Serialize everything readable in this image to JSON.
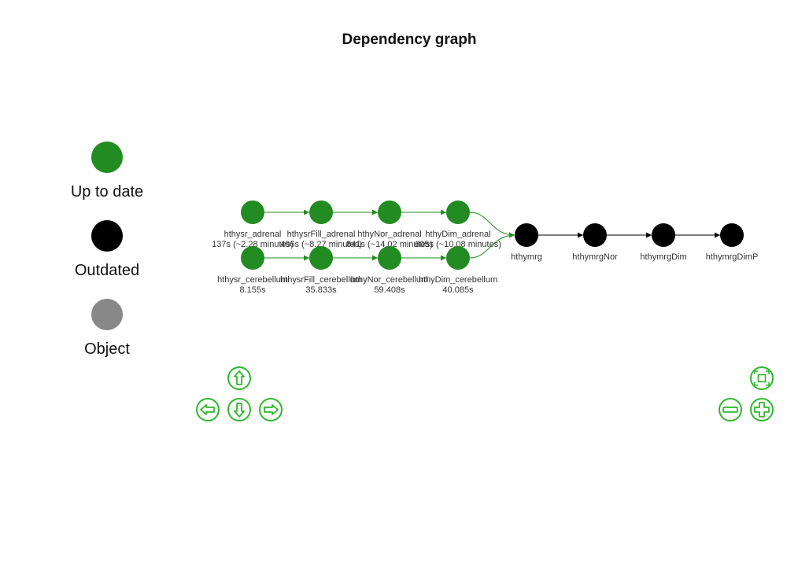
{
  "title": "Dependency graph",
  "legend": [
    {
      "label": "Up to date",
      "color": "#228b22"
    },
    {
      "label": "Outdated",
      "color": "#000000"
    },
    {
      "label": "Object",
      "color": "#888888"
    }
  ],
  "nodes": [
    {
      "id": "hthysr_adrenal",
      "label": "hthysr_adrenal",
      "time": "137s (~2.28 minutes)",
      "status": "up-to-date"
    },
    {
      "id": "hthysrFill_adrenal",
      "label": "hthysrFill_adrenal",
      "time": "496s (~8.27 minutes)",
      "status": "up-to-date"
    },
    {
      "id": "hthyNor_adrenal",
      "label": "hthyNor_adrenal",
      "time": "841s (~14.02 minutes)",
      "status": "up-to-date"
    },
    {
      "id": "hthyDim_adrenal",
      "label": "hthyDim_adrenal",
      "time": "605s (~10.08 minutes)",
      "status": "up-to-date"
    },
    {
      "id": "hthysr_cerebellum",
      "label": "hthysr_cerebellum",
      "time": "8.155s",
      "status": "up-to-date"
    },
    {
      "id": "hthysrFill_cerebellum",
      "label": "hthysrFill_cerebellum",
      "time": "35.833s",
      "status": "up-to-date"
    },
    {
      "id": "hthyNor_cerebellum",
      "label": "hthyNor_cerebellum",
      "time": "59.408s",
      "status": "up-to-date"
    },
    {
      "id": "hthyDim_cerebellum",
      "label": "hthyDim_cerebellum",
      "time": "40.085s",
      "status": "up-to-date"
    },
    {
      "id": "hthymrg",
      "label": "hthymrg",
      "time": "",
      "status": "outdated"
    },
    {
      "id": "hthymrgNor",
      "label": "hthymrgNor",
      "time": "",
      "status": "outdated"
    },
    {
      "id": "hthymrgDim",
      "label": "hthymrgDim",
      "time": "",
      "status": "outdated"
    },
    {
      "id": "hthymrgDimP",
      "label": "hthymrgDimP",
      "time": "",
      "status": "outdated"
    }
  ],
  "edges": [
    [
      "hthysr_adrenal",
      "hthysrFill_adrenal"
    ],
    [
      "hthysrFill_adrenal",
      "hthyNor_adrenal"
    ],
    [
      "hthyNor_adrenal",
      "hthyDim_adrenal"
    ],
    [
      "hthyDim_adrenal",
      "hthymrg"
    ],
    [
      "hthysr_cerebellum",
      "hthysrFill_cerebellum"
    ],
    [
      "hthysrFill_cerebellum",
      "hthyNor_cerebellum"
    ],
    [
      "hthyNor_cerebellum",
      "hthyDim_cerebellum"
    ],
    [
      "hthyDim_cerebellum",
      "hthymrg"
    ],
    [
      "hthymrg",
      "hthymrgNor"
    ],
    [
      "hthymrgNor",
      "hthymrgDim"
    ],
    [
      "hthymrgDim",
      "hthymrgDimP"
    ]
  ],
  "colors": {
    "up_to_date": "#228b22",
    "outdated": "#000000",
    "object": "#888888",
    "control": "#2db82d",
    "edge_up_to_date": "#228b22",
    "edge_outdated": "#000000"
  },
  "controls": [
    "pan-up",
    "pan-left",
    "pan-down",
    "pan-right",
    "zoom-fit",
    "zoom-out",
    "zoom-in"
  ]
}
